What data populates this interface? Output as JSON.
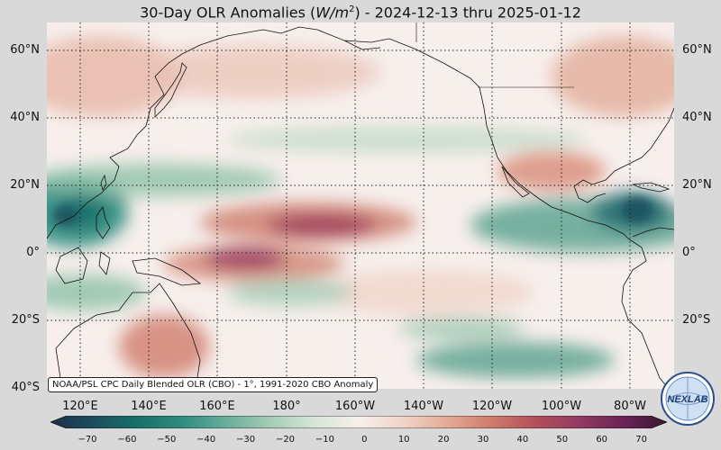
{
  "title": {
    "prefix": "30-Day OLR Anomalies (",
    "unit": "W/m",
    "exponent": "2",
    "suffix": ") - 2024-12-13 thru 2025-01-12"
  },
  "lat_labels": [
    "60°N",
    "40°N",
    "20°N",
    "0°",
    "20°S",
    "40°S"
  ],
  "lon_labels": [
    "120°E",
    "140°E",
    "160°E",
    "180°",
    "160°W",
    "140°W",
    "120°W",
    "100°W",
    "80°W"
  ],
  "source_note": "NOAA/PSL CPC Daily Blended OLR (CBO) - 1°, 1991-2020 CBO Anomaly",
  "colorbar": {
    "ticks": [
      "−70",
      "−60",
      "−50",
      "−40",
      "−30",
      "−20",
      "−10",
      "0",
      "10",
      "20",
      "30",
      "40",
      "50",
      "60",
      "70"
    ],
    "colors": [
      "#1d2d47",
      "#1b4f5e",
      "#19706a",
      "#2f8c80",
      "#6aae9b",
      "#a5ccb6",
      "#d6e6d8",
      "#f7efec",
      "#f0d4c8",
      "#e4ab97",
      "#cf7c6b",
      "#b5505b",
      "#923a62",
      "#6b2457",
      "#3b1535"
    ]
  },
  "logo_text": "NEXLAB",
  "colors": {
    "background": "#d9d9d9",
    "ocean_neutral": "#f7efec",
    "positive_anomaly": "#c8806f",
    "negative_anomaly": "#3d9a85",
    "coastline": "#111111"
  }
}
